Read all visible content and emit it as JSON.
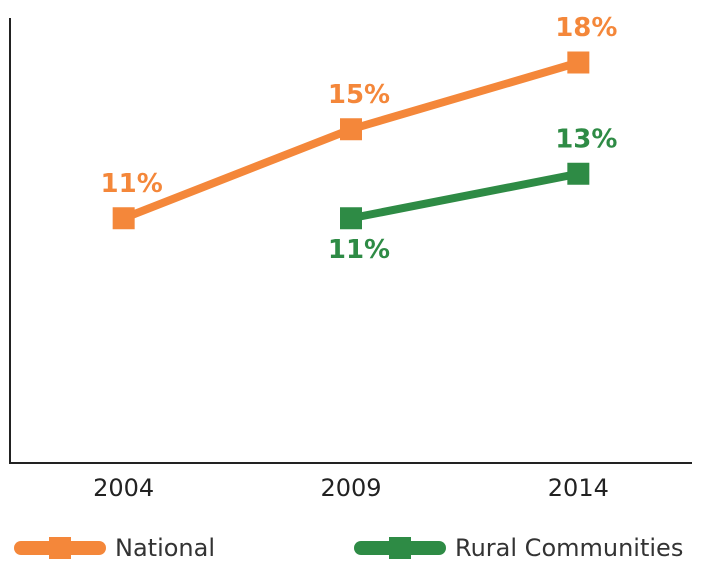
{
  "chart_data": {
    "type": "line",
    "categories": [
      "2004",
      "2009",
      "2014"
    ],
    "series": [
      {
        "name": "National",
        "color": "#f4873a",
        "values": [
          11,
          15,
          18
        ],
        "value_labels": [
          "11%",
          "15%",
          "18%"
        ]
      },
      {
        "name": "Rural Communities",
        "color": "#2e8b45",
        "values": [
          null,
          11,
          13
        ],
        "value_labels": [
          null,
          "11%",
          "13%"
        ]
      }
    ],
    "ylim": [
      0,
      20
    ],
    "legend": "bottom"
  }
}
